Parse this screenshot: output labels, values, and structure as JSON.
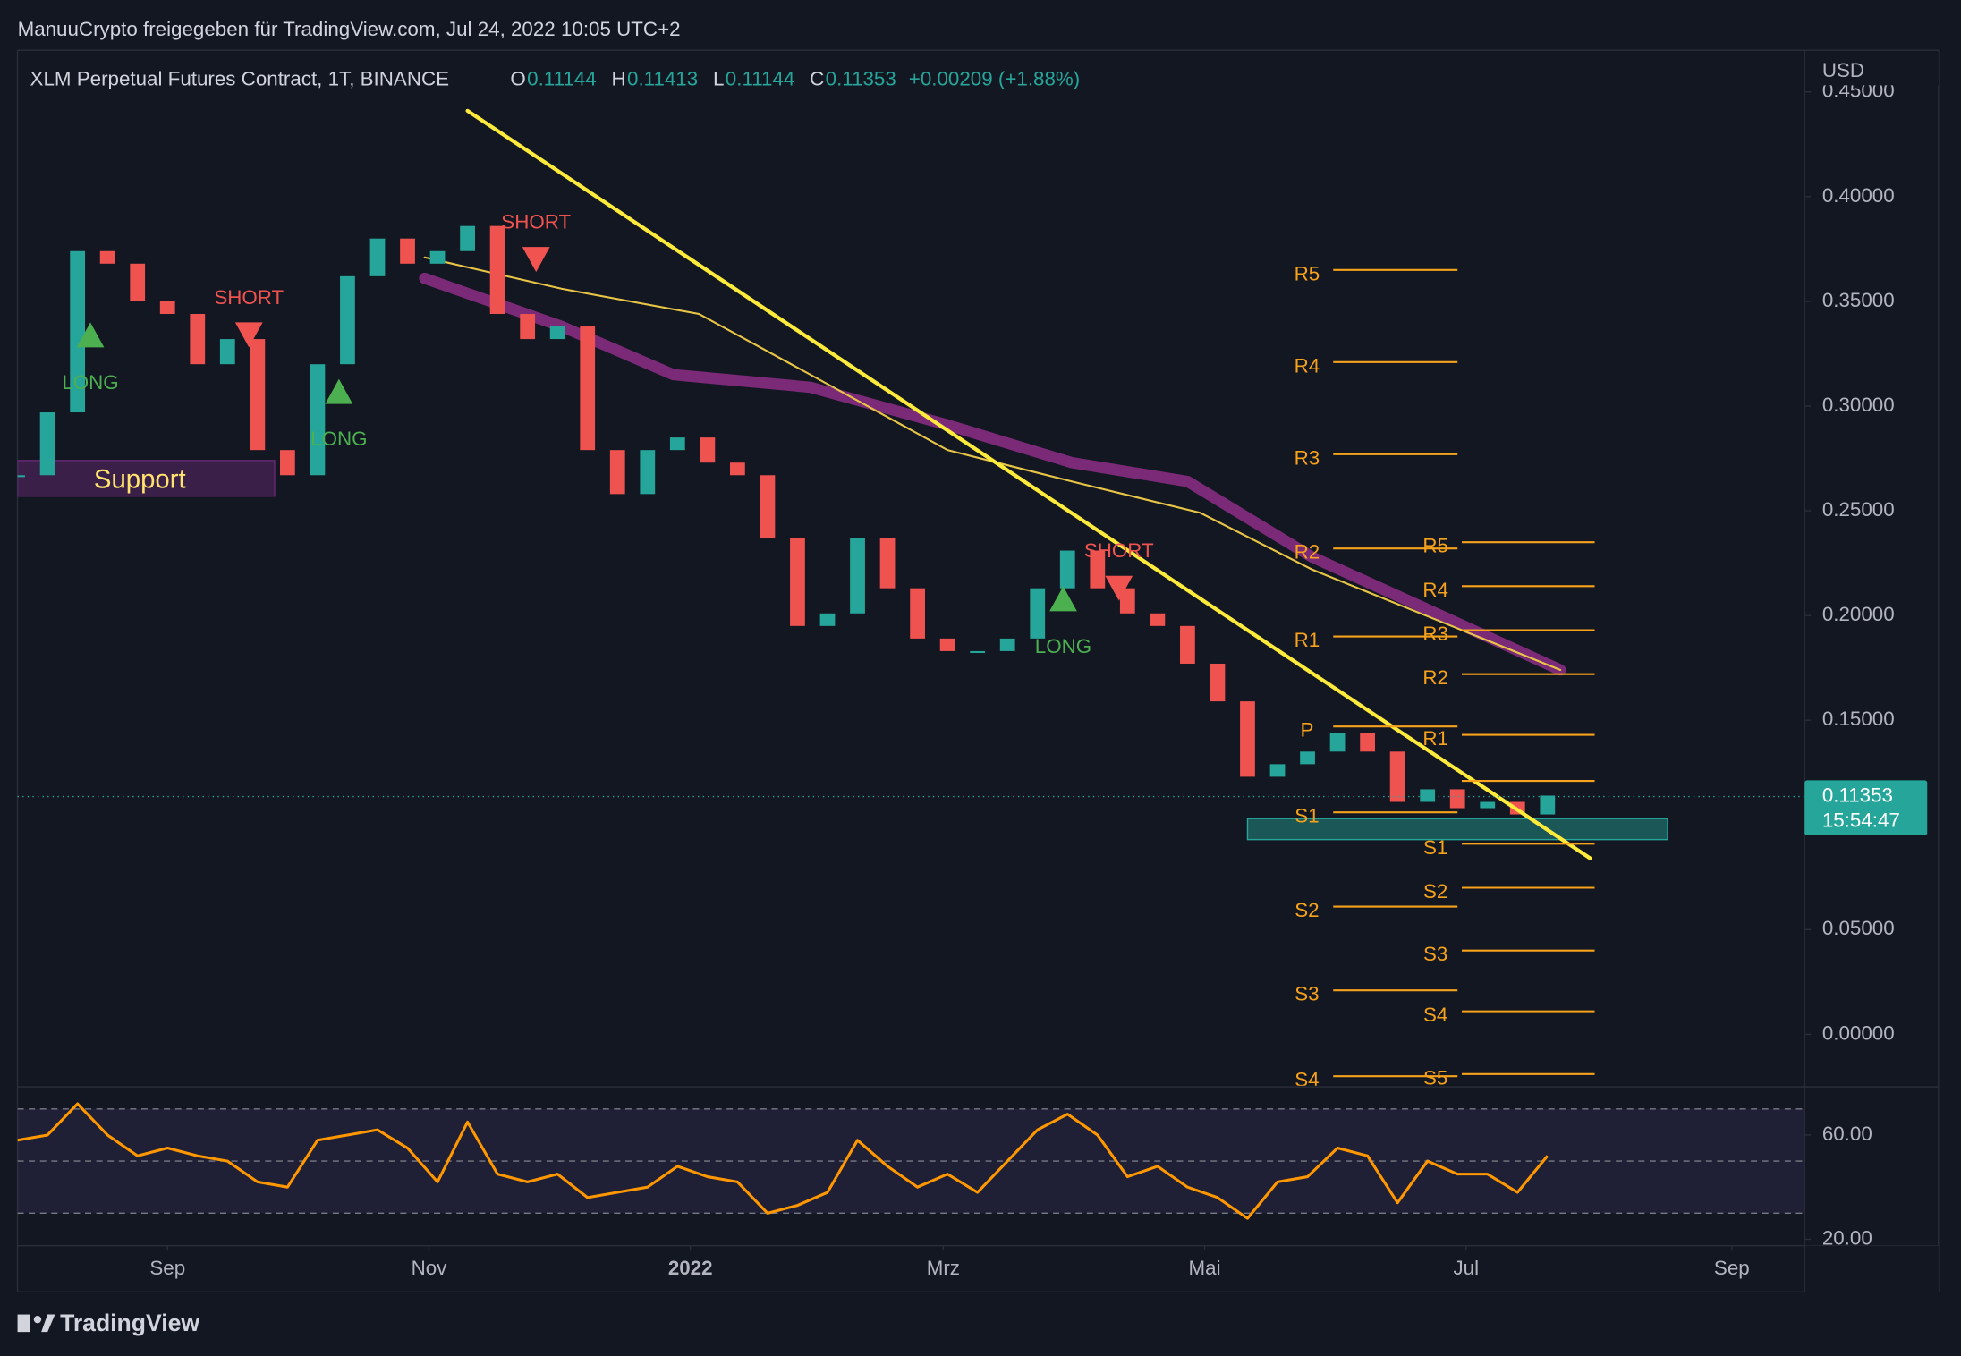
{
  "header": "ManuuCrypto freigegeben für TradingView.com, Jul 24, 2022 10:05 UTC+2",
  "footer": "TradingView",
  "chart_data": {
    "type": "candlestick",
    "title": "XLM Perpetual Futures Contract, 1T, BINANCE",
    "ohlc": [
      {
        "key": "O",
        "value": "0.11144"
      },
      {
        "key": "H",
        "value": "0.11413"
      },
      {
        "key": "L",
        "value": "0.11144"
      },
      {
        "key": "C",
        "value": "0.11353"
      }
    ],
    "change": "+0.00209 (+1.88%)",
    "currency": "USD",
    "last_price": {
      "value": 0.11353,
      "label": "0.11353",
      "countdown": "15:54:47"
    },
    "xlim": [
      0,
      417
    ],
    "xticks": [
      {
        "value": 35,
        "label": "Sep"
      },
      {
        "value": 96,
        "label": "Nov"
      },
      {
        "value": 157,
        "label": "2022"
      },
      {
        "value": 216,
        "label": "Mrz"
      },
      {
        "value": 277,
        "label": "Mai"
      },
      {
        "value": 338,
        "label": "Jul"
      },
      {
        "value": 400,
        "label": "Sep"
      }
    ],
    "ylim": [
      -0.0245,
      0.4699
    ],
    "yticks": [
      {
        "value": 0.45,
        "label": "0.45000"
      },
      {
        "value": 0.4,
        "label": "0.40000"
      },
      {
        "value": 0.35,
        "label": "0.35000"
      },
      {
        "value": 0.3,
        "label": "0.30000"
      },
      {
        "value": 0.25,
        "label": "0.25000"
      },
      {
        "value": 0.2,
        "label": "0.20000"
      },
      {
        "value": 0.15,
        "label": "0.15000"
      },
      {
        "value": 0.05,
        "label": "0.05000"
      },
      {
        "value": 0,
        "label": "0.00000"
      }
    ],
    "x": [
      0,
      7,
      14,
      21,
      28,
      35,
      42,
      49,
      56,
      63,
      70,
      77,
      84,
      91,
      98,
      105,
      112,
      119,
      126,
      133,
      140,
      147,
      154,
      161,
      168,
      175,
      182,
      189,
      196,
      203,
      210,
      217,
      224,
      231,
      238,
      245,
      252,
      259,
      266,
      273,
      280,
      287,
      294,
      301,
      308,
      315,
      322,
      329,
      336,
      343,
      350,
      357
    ],
    "values": [
      0.267,
      0.297,
      0.374,
      0.368,
      0.35,
      0.344,
      0.32,
      0.332,
      0.279,
      0.267,
      0.32,
      0.362,
      0.38,
      0.368,
      0.374,
      0.386,
      0.344,
      0.332,
      0.338,
      0.279,
      0.258,
      0.279,
      0.285,
      0.273,
      0.267,
      0.237,
      0.195,
      0.201,
      0.237,
      0.213,
      0.189,
      0.183,
      0.183,
      0.189,
      0.213,
      0.231,
      0.213,
      0.201,
      0.195,
      0.177,
      0.159,
      0.123,
      0.129,
      0.135,
      0.144,
      0.135,
      0.111,
      0.117,
      0.108,
      0.111,
      0.105,
      0.114
    ],
    "up_color": "#26a69a",
    "down_color": "#ef5350",
    "trendline": {
      "x": [
        105,
        367
      ],
      "values": [
        0.441,
        0.084
      ],
      "color": "#ffeb3b"
    },
    "ma_slow": {
      "x": [
        95,
        127,
        153,
        185,
        217,
        246,
        273,
        302,
        331,
        360
      ],
      "values": [
        0.361,
        0.338,
        0.315,
        0.309,
        0.291,
        0.273,
        0.264,
        0.228,
        0.201,
        0.174
      ],
      "color": "#7b2a78"
    },
    "ma_200": {
      "x": [
        95,
        127,
        159,
        185,
        217,
        246,
        276,
        302,
        331,
        360
      ],
      "values": [
        0.371,
        0.356,
        0.344,
        0.315,
        0.279,
        0.264,
        0.249,
        0.222,
        0.198,
        0.174
      ],
      "color": "#e8c547"
    },
    "zones": [
      {
        "label": "Support",
        "x": [
          0,
          60
        ],
        "values": [
          0.274,
          0.257
        ],
        "color": "#6a2a78"
      },
      {
        "label": null,
        "x": [
          287,
          385
        ],
        "values": [
          0.103,
          0.093
        ],
        "color": "#26a69a"
      }
    ],
    "signals": [
      {
        "label": "LONG",
        "x": 17,
        "value": 0.334,
        "color": "#4caf50"
      },
      {
        "label": "SHORT",
        "x": 54,
        "value": 0.334,
        "color": "#f05350"
      },
      {
        "label": "LONG",
        "x": 75,
        "value": 0.307,
        "color": "#4caf50"
      },
      {
        "label": "SHORT",
        "x": 121,
        "value": 0.37,
        "color": "#f05350"
      },
      {
        "label": "LONG",
        "x": 244,
        "value": 0.208,
        "color": "#4caf50"
      },
      {
        "label": "SHORT",
        "x": 257,
        "value": 0.213,
        "color": "#f05350"
      }
    ],
    "pivot_color": "#f7a21b",
    "pivots": [
      {
        "x": [
          307,
          336
        ],
        "levels": [
          {
            "label": "R5",
            "value": 0.365
          },
          {
            "label": "R4",
            "value": 0.321
          },
          {
            "label": "R3",
            "value": 0.277
          },
          {
            "label": "R2",
            "value": 0.232
          },
          {
            "label": "R1",
            "value": 0.19
          },
          {
            "label": "P",
            "value": 0.147
          },
          {
            "label": "S1",
            "value": 0.106
          },
          {
            "label": "S2",
            "value": 0.061
          },
          {
            "label": "S3",
            "value": 0.021
          },
          {
            "label": "S4",
            "value": -0.02
          }
        ]
      },
      {
        "x": [
          337,
          368
        ],
        "levels": [
          {
            "label": "R5",
            "value": 0.235
          },
          {
            "label": "R4",
            "value": 0.214
          },
          {
            "label": "R3",
            "value": 0.193
          },
          {
            "label": "R2",
            "value": 0.172
          },
          {
            "label": "R1",
            "value": 0.143
          },
          {
            "label": null,
            "value": 0.121
          },
          {
            "label": "S1",
            "value": 0.091
          },
          {
            "label": "S2",
            "value": 0.07
          },
          {
            "label": "S3",
            "value": 0.04
          },
          {
            "label": "S4",
            "value": 0.011
          },
          {
            "label": "S5",
            "value": -0.019
          }
        ]
      }
    ],
    "rsi": {
      "ylim": [
        18,
        78
      ],
      "yticks": [
        {
          "value": 60,
          "label": "60.00"
        },
        {
          "value": 20,
          "label": "20.00"
        }
      ],
      "bands": [
        70,
        50,
        30
      ],
      "color": "#ff9800",
      "values": [
        58,
        60,
        72,
        60,
        52,
        55,
        52,
        50,
        42,
        40,
        58,
        60,
        62,
        55,
        42,
        65,
        45,
        42,
        45,
        36,
        38,
        40,
        48,
        44,
        42,
        30,
        33,
        38,
        58,
        48,
        40,
        45,
        38,
        50,
        62,
        68,
        60,
        44,
        48,
        40,
        36,
        28,
        42,
        44,
        55,
        52,
        34,
        50,
        45,
        45,
        38,
        52
      ]
    }
  }
}
